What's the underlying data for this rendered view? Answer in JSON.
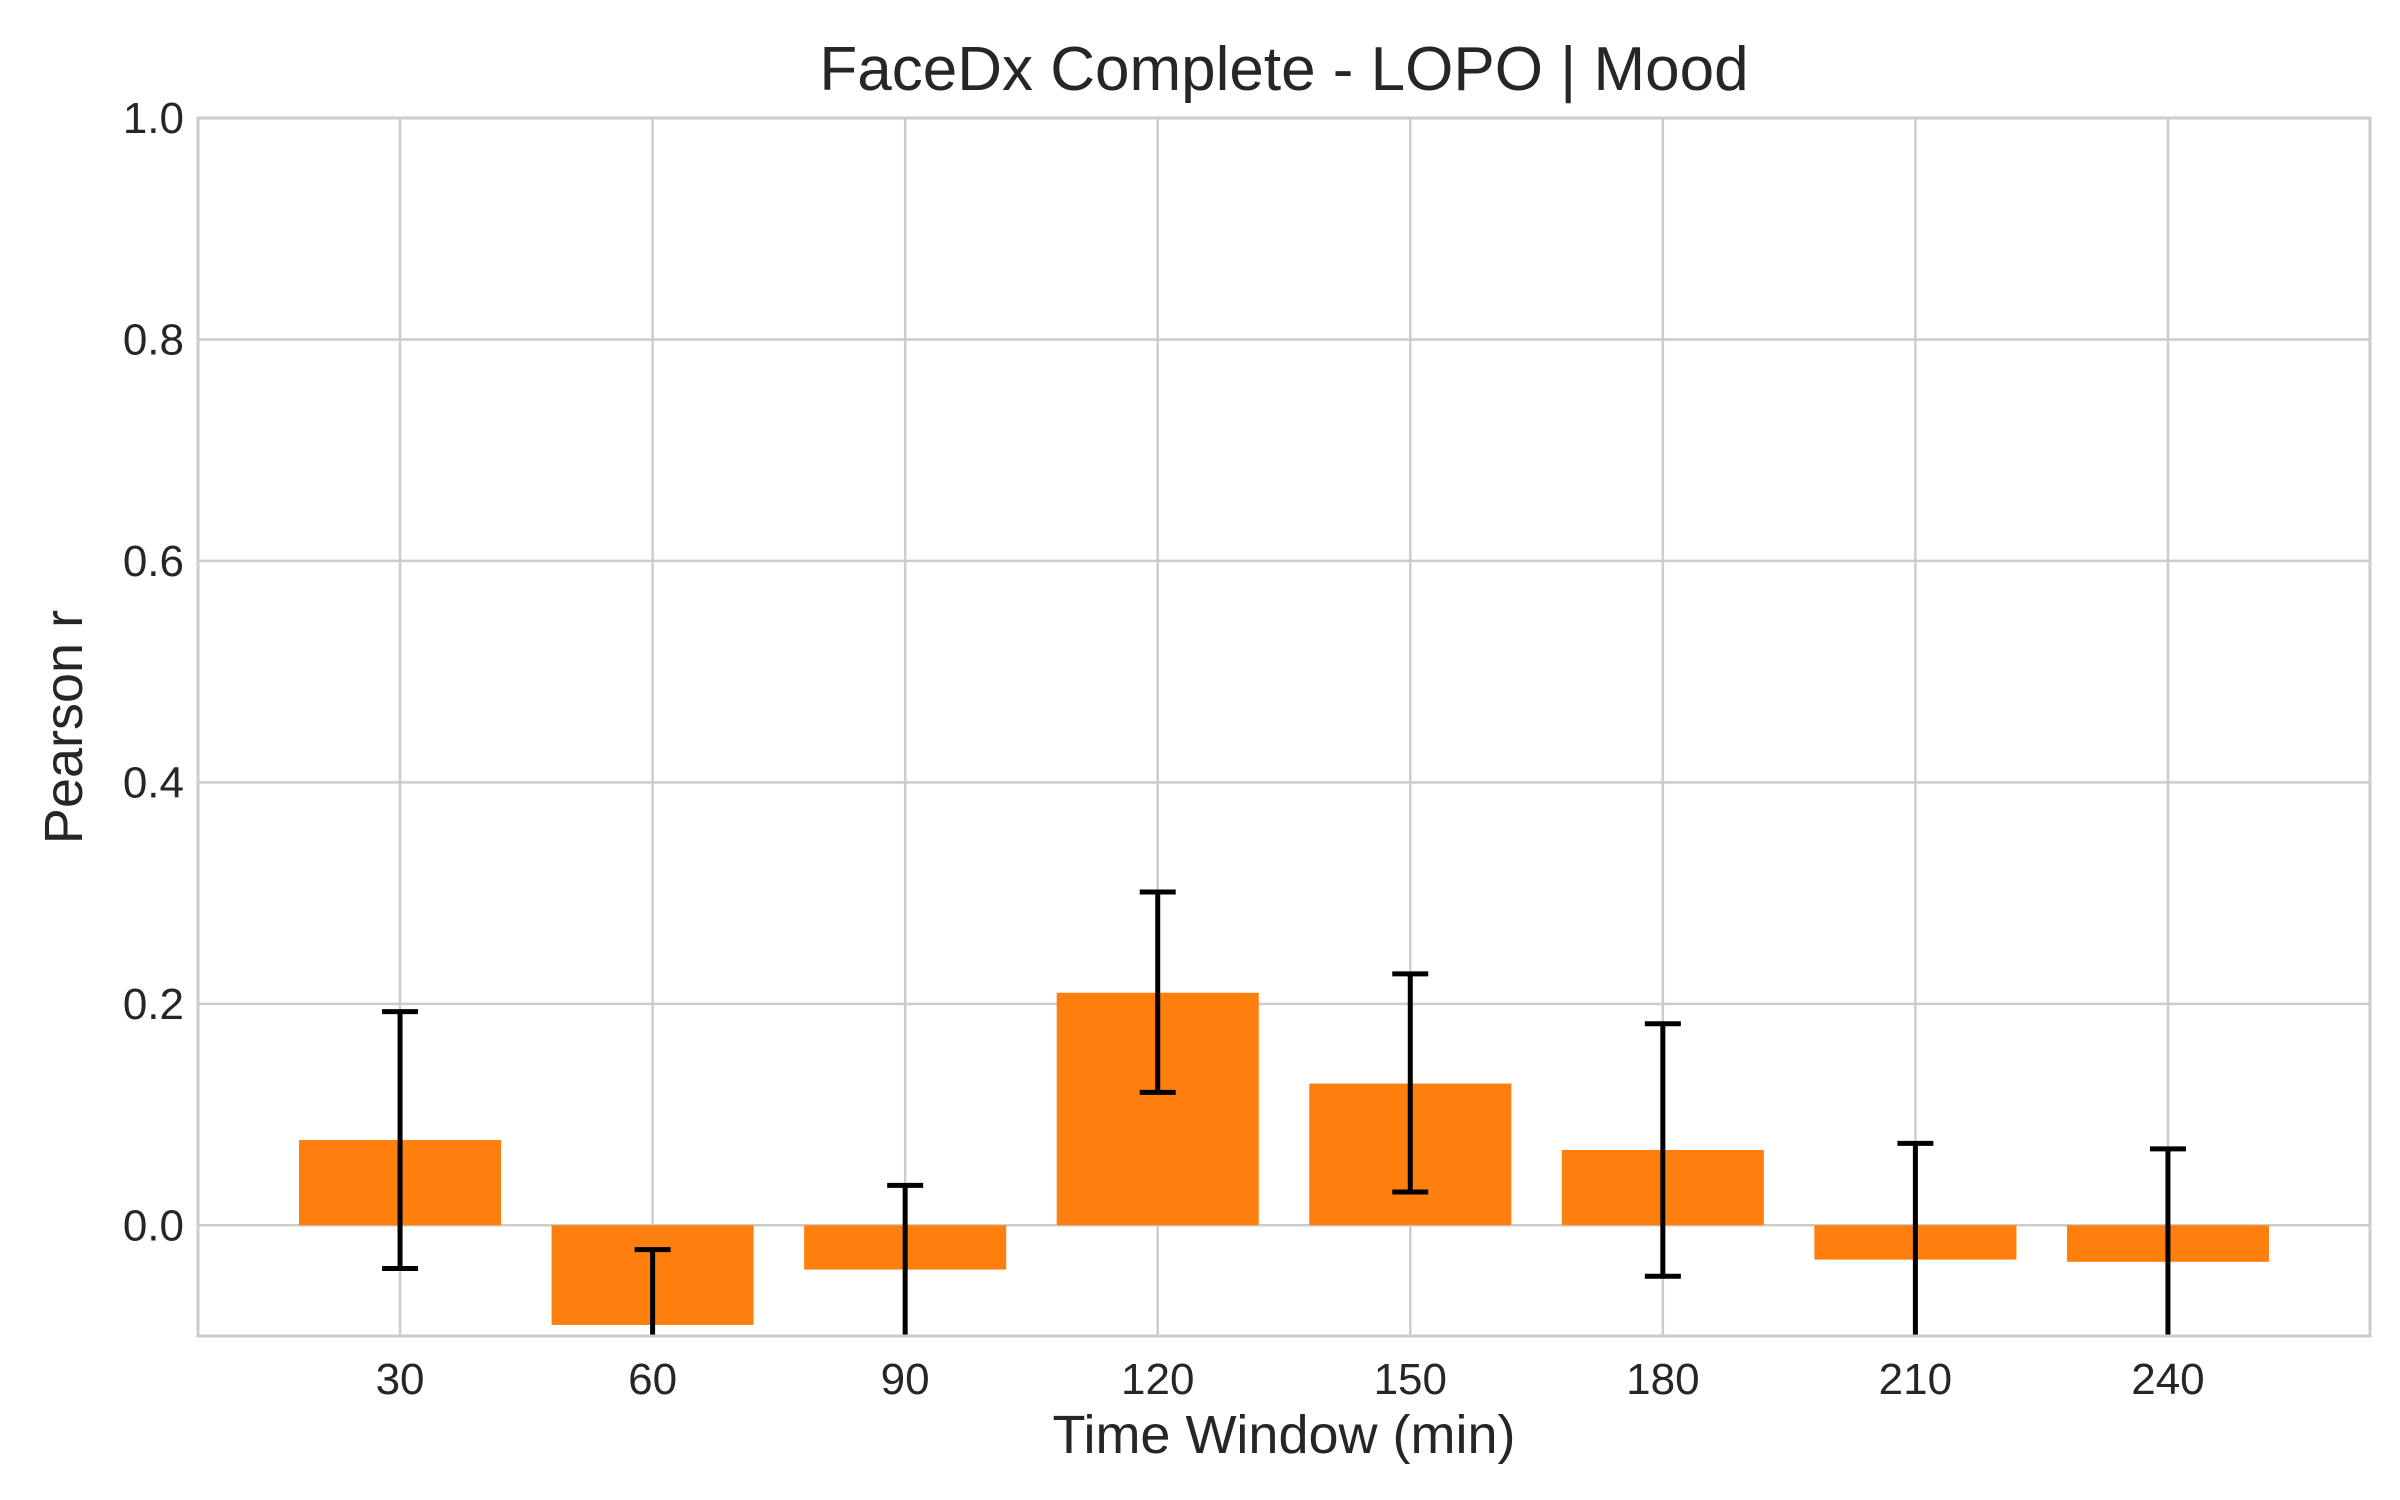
{
  "chart_data": {
    "type": "bar",
    "title": "FaceDx Complete - LOPO | Mood",
    "xlabel": "Time Window (min)",
    "ylabel": "Pearson r",
    "categories": [
      "30",
      "60",
      "90",
      "120",
      "150",
      "180",
      "210",
      "240"
    ],
    "values": [
      0.077,
      -0.09,
      -0.04,
      0.21,
      0.128,
      0.068,
      -0.031,
      -0.033
    ],
    "error_low": [
      -0.039,
      -0.214,
      -0.117,
      0.12,
      0.03,
      -0.046,
      -0.135,
      -0.136
    ],
    "error_high": [
      0.193,
      -0.022,
      0.036,
      0.301,
      0.227,
      0.182,
      0.074,
      0.069
    ],
    "ylim": [
      -0.1,
      1.0
    ],
    "yticks": [
      "0.0",
      "0.2",
      "0.4",
      "0.6",
      "0.8",
      "1.0"
    ],
    "grid": true,
    "bar_color": "#ff7f0e",
    "error_color": "#000000"
  }
}
